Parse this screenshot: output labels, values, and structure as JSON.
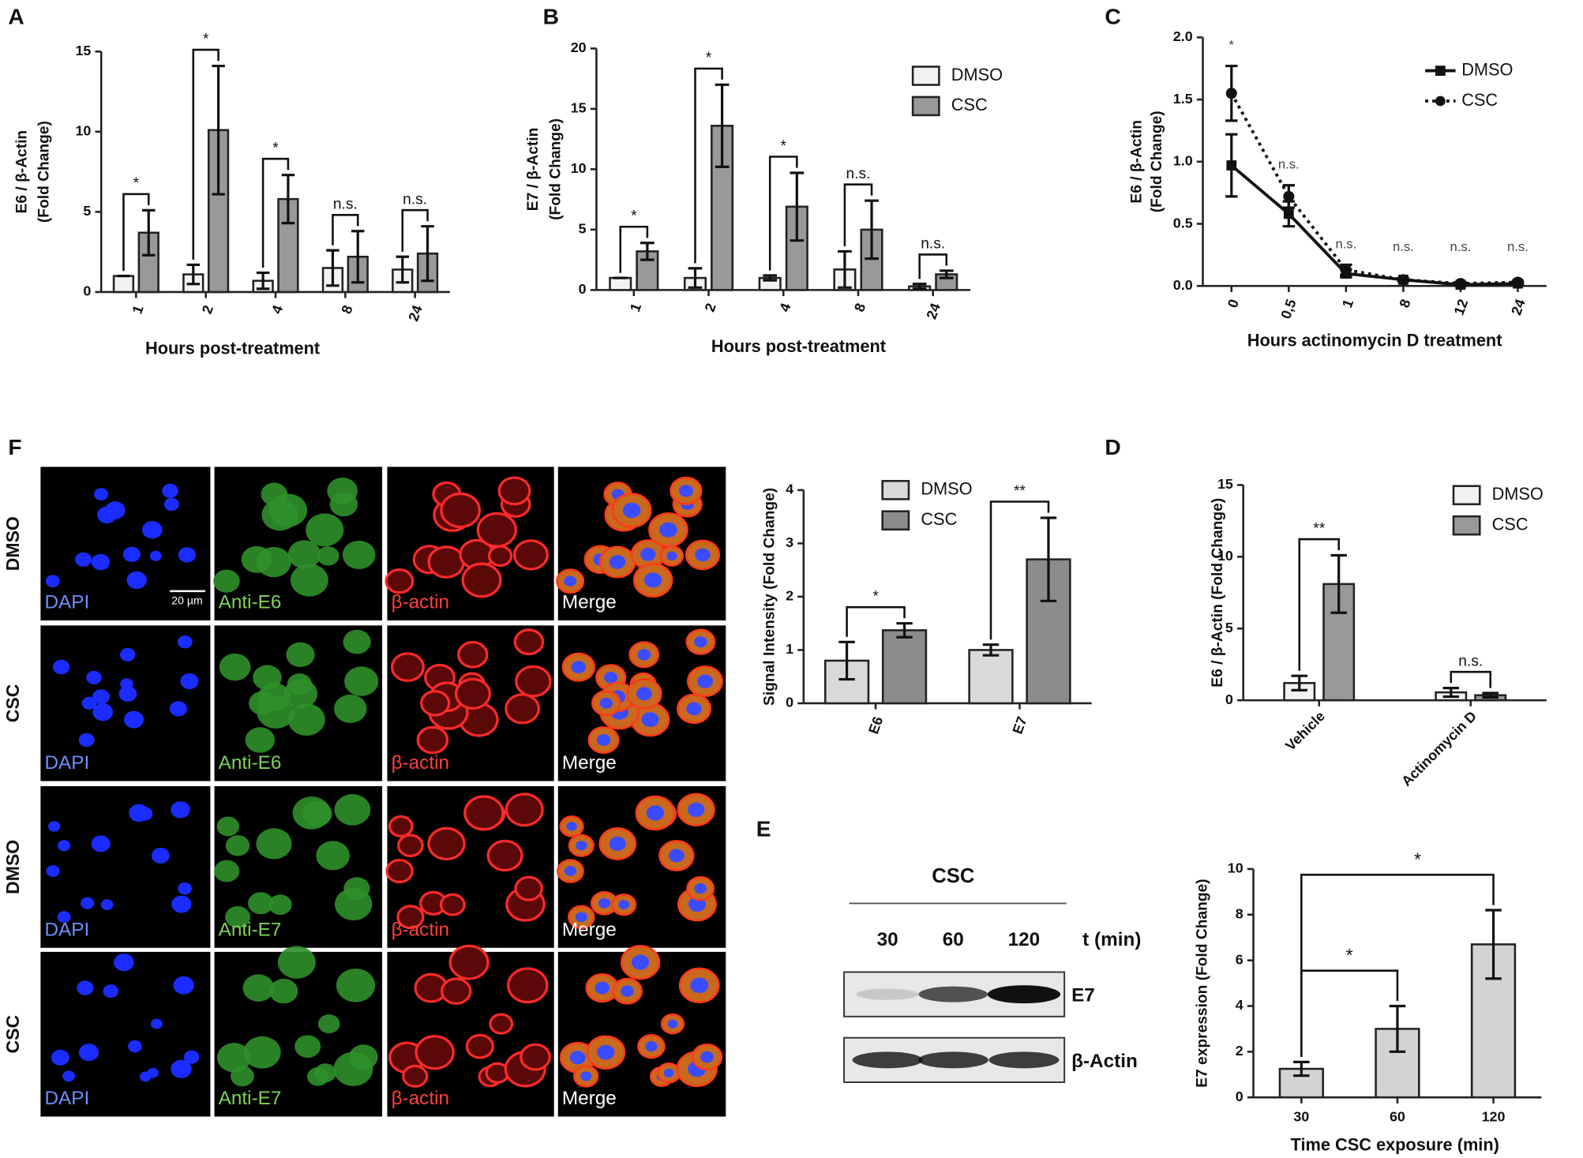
{
  "chart_data": [
    {
      "type": "bar",
      "panel": "A",
      "ylabel": [
        "E6 / β-Actin",
        "(Fold Change)"
      ],
      "xlabel": "Hours post-treatment",
      "categories": [
        "1",
        "2",
        "4",
        "8",
        "24"
      ],
      "series": [
        {
          "name": "DMSO",
          "color": "#f2f2f2",
          "values": [
            1,
            1.1,
            0.7,
            1.5,
            1.4
          ],
          "errors": [
            0,
            0.6,
            0.5,
            1.1,
            0.8
          ]
        },
        {
          "name": "CSC",
          "color": "#999999",
          "values": [
            3.7,
            10.1,
            5.8,
            2.2,
            2.4
          ],
          "errors": [
            1.4,
            4.0,
            1.5,
            1.6,
            1.7
          ]
        }
      ],
      "ylim": [
        0,
        15
      ],
      "yticks": [
        0,
        5,
        10,
        15
      ],
      "annotations": [
        "*",
        "*",
        "*",
        "n.s.",
        "n.s."
      ]
    },
    {
      "type": "bar",
      "panel": "B",
      "ylabel": [
        "E7 / β-Actin",
        "(Fold Change)"
      ],
      "xlabel": "Hours post-treatment",
      "categories": [
        "1",
        "2",
        "4",
        "8",
        "24"
      ],
      "series": [
        {
          "name": "DMSO",
          "color": "#f2f2f2",
          "values": [
            1,
            1,
            1,
            1.7,
            0.3
          ],
          "errors": [
            0,
            0.8,
            0.2,
            1.5,
            0.2
          ]
        },
        {
          "name": "CSC",
          "color": "#999999",
          "values": [
            3.2,
            13.6,
            6.9,
            5.0,
            1.3
          ],
          "errors": [
            0.7,
            3.4,
            2.8,
            2.4,
            0.3
          ]
        }
      ],
      "ylim": [
        0,
        20
      ],
      "yticks": [
        0,
        5,
        10,
        15,
        20
      ],
      "annotations": [
        "*",
        "*",
        "*",
        "n.s.",
        "n.s."
      ],
      "legend": "right"
    },
    {
      "type": "line",
      "panel": "C",
      "ylabel": [
        "E6 / β-Actin",
        "(Fold Change)"
      ],
      "xlabel": "Hours actinomycin D treatment",
      "categories": [
        "0",
        "0,5",
        "1",
        "8",
        "12",
        "24"
      ],
      "series": [
        {
          "name": "DMSO",
          "color": "#111111",
          "values": [
            0.97,
            0.58,
            0.1,
            0.05,
            0.01,
            0.02
          ],
          "errors": [
            0.25,
            0.1,
            0.03,
            0.01,
            0.01,
            0.01
          ]
        },
        {
          "name": "CSC",
          "color": "#111111",
          "values": [
            1.55,
            0.72,
            0.13,
            0.05,
            0.02,
            0.03
          ],
          "errors": [
            0.22,
            0.09,
            0.04,
            0.01,
            0.01,
            0.01
          ]
        }
      ],
      "ylim": [
        0,
        2
      ],
      "yticks": [
        {
          "value": 0,
          "label": "0.0"
        },
        {
          "value": 0.5,
          "label": "0.5"
        },
        {
          "value": 1,
          "label": "1.0"
        },
        {
          "value": 1.5,
          "label": "1.5"
        },
        {
          "value": 2,
          "label": "2.0"
        }
      ],
      "annotations": [
        "*",
        "n.s.",
        "n.s.",
        "n.s.",
        "n.s.",
        "n.s."
      ],
      "legend": "upper right"
    },
    {
      "type": "bar",
      "ylabel": [
        "Signal Intensity (Fold Change)"
      ],
      "categories": [
        "E6",
        "E7"
      ],
      "series": [
        {
          "name": "DMSO",
          "color": "#d9d9d9",
          "values": [
            0.8,
            1.0
          ],
          "errors": [
            0.35,
            0.1
          ]
        },
        {
          "name": "CSC",
          "color": "#8c8c8c",
          "values": [
            1.37,
            2.7
          ],
          "errors": [
            0.13,
            0.78
          ]
        }
      ],
      "ylim": [
        0,
        4
      ],
      "yticks": [
        0,
        1,
        2,
        3,
        4
      ],
      "annotations": [
        "*",
        "**"
      ],
      "legend": "upper left"
    },
    {
      "type": "bar",
      "panel": "D",
      "ylabel": [
        "E6 / β-Actin (Fold Change)"
      ],
      "categories": [
        "Vehicle",
        "Actinomycin D"
      ],
      "series": [
        {
          "name": "DMSO",
          "color": "#f2f2f2",
          "values": [
            1.2,
            0.55
          ],
          "errors": [
            0.5,
            0.3
          ]
        },
        {
          "name": "CSC",
          "color": "#999999",
          "values": [
            8.1,
            0.35
          ],
          "errors": [
            2.0,
            0.15
          ]
        }
      ],
      "ylim": [
        0,
        15
      ],
      "yticks": [
        0,
        5,
        10,
        15
      ],
      "annotations": [
        "**",
        "n.s."
      ],
      "legend": "upper right"
    },
    {
      "type": "bar",
      "ylabel": [
        "E7 expression (Fold Change)"
      ],
      "xlabel": "Time CSC exposure (min)",
      "categories": [
        "30",
        "60",
        "120"
      ],
      "values": [
        1.25,
        3.0,
        6.7
      ],
      "errors": [
        0.3,
        1.0,
        1.5
      ],
      "color": "#d3d3d3",
      "ylim": [
        0,
        10
      ],
      "yticks": [
        0,
        2,
        4,
        6,
        8,
        10
      ],
      "annotations": [
        "*",
        "*"
      ]
    }
  ],
  "blot": {
    "panel": "E",
    "title": "CSC",
    "lanes": [
      "30",
      "60",
      "120"
    ],
    "unit": "t (min)",
    "bands": [
      "E7",
      "β-Actin"
    ]
  },
  "micrographs": {
    "panel": "F",
    "scale_bar": "20 µm",
    "rows": [
      {
        "label": "DMSO",
        "channels": [
          "DAPI",
          "Anti-E6",
          "β-actin",
          "Merge"
        ]
      },
      {
        "label": "CSC",
        "channels": [
          "DAPI",
          "Anti-E6",
          "β-actin",
          "Merge"
        ]
      },
      {
        "label": "DMSO",
        "channels": [
          "DAPI",
          "Anti-E7",
          "β-actin",
          "Merge"
        ]
      },
      {
        "label": "CSC",
        "channels": [
          "DAPI",
          "Anti-E7",
          "β-actin",
          "Merge"
        ]
      }
    ]
  }
}
